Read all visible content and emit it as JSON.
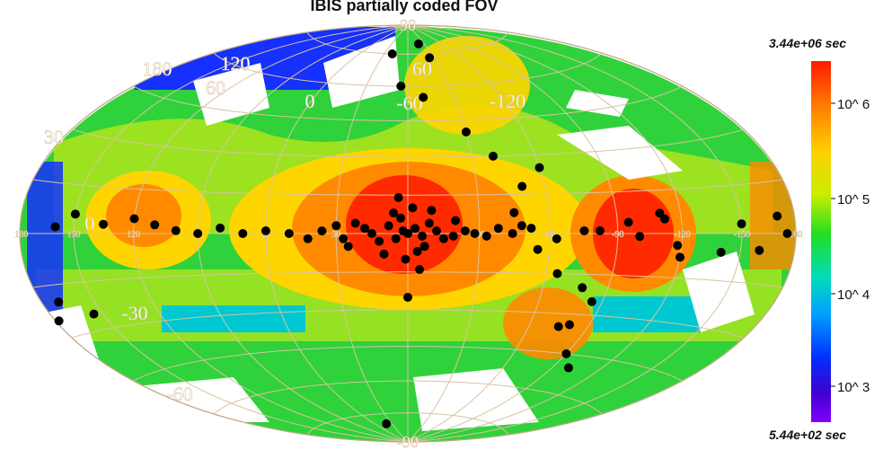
{
  "title": "IBIS partially coded FOV",
  "colorbar": {
    "max_label": "3.44e+06 sec",
    "min_label": "5.44e+02 sec",
    "ticks": [
      "10^ 6",
      "10^ 5",
      "10^ 4",
      "10^ 3"
    ],
    "colors": [
      "#ff1a00",
      "#ff7a00",
      "#ffd000",
      "#c8ee00",
      "#22dd22",
      "#00ddbb",
      "#00a0ff",
      "#0030ff",
      "#4000d0",
      "#8000ff"
    ]
  },
  "map": {
    "projection": "Hammer-Aitoff (galactic)",
    "longitude_labels_top": [
      "180",
      "120",
      "60",
      "0",
      "-60",
      "-120"
    ],
    "longitude_labels_equator": [
      "180",
      "150",
      "120",
      "90",
      "60",
      "30",
      "0",
      "-30",
      "-60",
      "-90",
      "-120",
      "-150",
      "-180"
    ],
    "latitude_labels": [
      "90",
      "60",
      "30",
      "0",
      "-30",
      "-60",
      "-90"
    ],
    "colors": {
      "background": "#ffffff",
      "grid": "#d9c3a0",
      "outline": "#c0a882",
      "source": "#000000",
      "deep": "#ff2a00",
      "high": "#ff8a00",
      "mid_high": "#ffd500",
      "mid": "#b8e61c",
      "low": "#2fd23a",
      "lower": "#00c8d0",
      "lowest": "#1530ff"
    },
    "sources": [
      [
        0,
        0
      ],
      [
        2,
        1
      ],
      [
        -3,
        2
      ],
      [
        5,
        -2
      ],
      [
        -6,
        -1
      ],
      [
        8,
        3
      ],
      [
        -9,
        4
      ],
      [
        12,
        -3
      ],
      [
        -12,
        1
      ],
      [
        3,
        6
      ],
      [
        -4,
        -7
      ],
      [
        6,
        8
      ],
      [
        -7,
        -5
      ],
      [
        15,
        0
      ],
      [
        -15,
        -2
      ],
      [
        1,
        -10
      ],
      [
        -2,
        10
      ],
      [
        18,
        2
      ],
      [
        -19,
        -1
      ],
      [
        10,
        -8
      ],
      [
        -10,
        9
      ],
      [
        22,
        4
      ],
      [
        -24,
        1
      ],
      [
        4,
        14
      ],
      [
        -5,
        -14
      ],
      [
        27,
        -2
      ],
      [
        -28,
        0
      ],
      [
        30,
        3
      ],
      [
        -33,
        -1
      ],
      [
        36,
        1
      ],
      [
        -38,
        2
      ],
      [
        42,
        -2
      ],
      [
        -44,
        0
      ],
      [
        50,
        0
      ],
      [
        -52,
        2
      ],
      [
        60,
        1
      ],
      [
        -63,
        -2
      ],
      [
        70,
        0
      ],
      [
        -75,
        1
      ],
      [
        80,
        2
      ],
      [
        -82,
        1
      ],
      [
        90,
        0
      ],
      [
        -95,
        4
      ],
      [
        100,
        1
      ],
      [
        -100,
        -1
      ],
      [
        110,
        3
      ],
      [
        -112,
        5
      ],
      [
        120,
        5
      ],
      [
        -118,
        -4
      ],
      [
        135,
        3
      ],
      [
        150,
        6
      ],
      [
        160,
        2
      ],
      [
        178,
        -25
      ],
      [
        170,
        -20
      ],
      [
        155,
        -25
      ],
      [
        -60,
        25
      ],
      [
        -50,
        18
      ],
      [
        -40,
        30
      ],
      [
        -30,
        40
      ],
      [
        -10,
        55
      ],
      [
        5,
        60
      ],
      [
        20,
        75
      ],
      [
        -25,
        73
      ],
      [
        -20,
        80
      ],
      [
        0,
        -25
      ],
      [
        -65,
        -15
      ],
      [
        -75,
        -35
      ],
      [
        -80,
        -34
      ],
      [
        -90,
        -45
      ],
      [
        -100,
        -50
      ],
      [
        -78,
        -20
      ],
      [
        -85,
        -25
      ],
      [
        -170,
        5
      ],
      [
        -175,
        0
      ],
      [
        -160,
        -5
      ],
      [
        -150,
        3
      ],
      [
        -140,
        -6
      ],
      [
        -120,
        -8
      ],
      [
        -110,
        7
      ],
      [
        40,
        -80
      ],
      [
        -45,
        8
      ],
      [
        -55,
        -6
      ],
      [
        -48,
        3
      ],
      [
        25,
        -5
      ],
      [
        -20,
        5
      ]
    ]
  }
}
